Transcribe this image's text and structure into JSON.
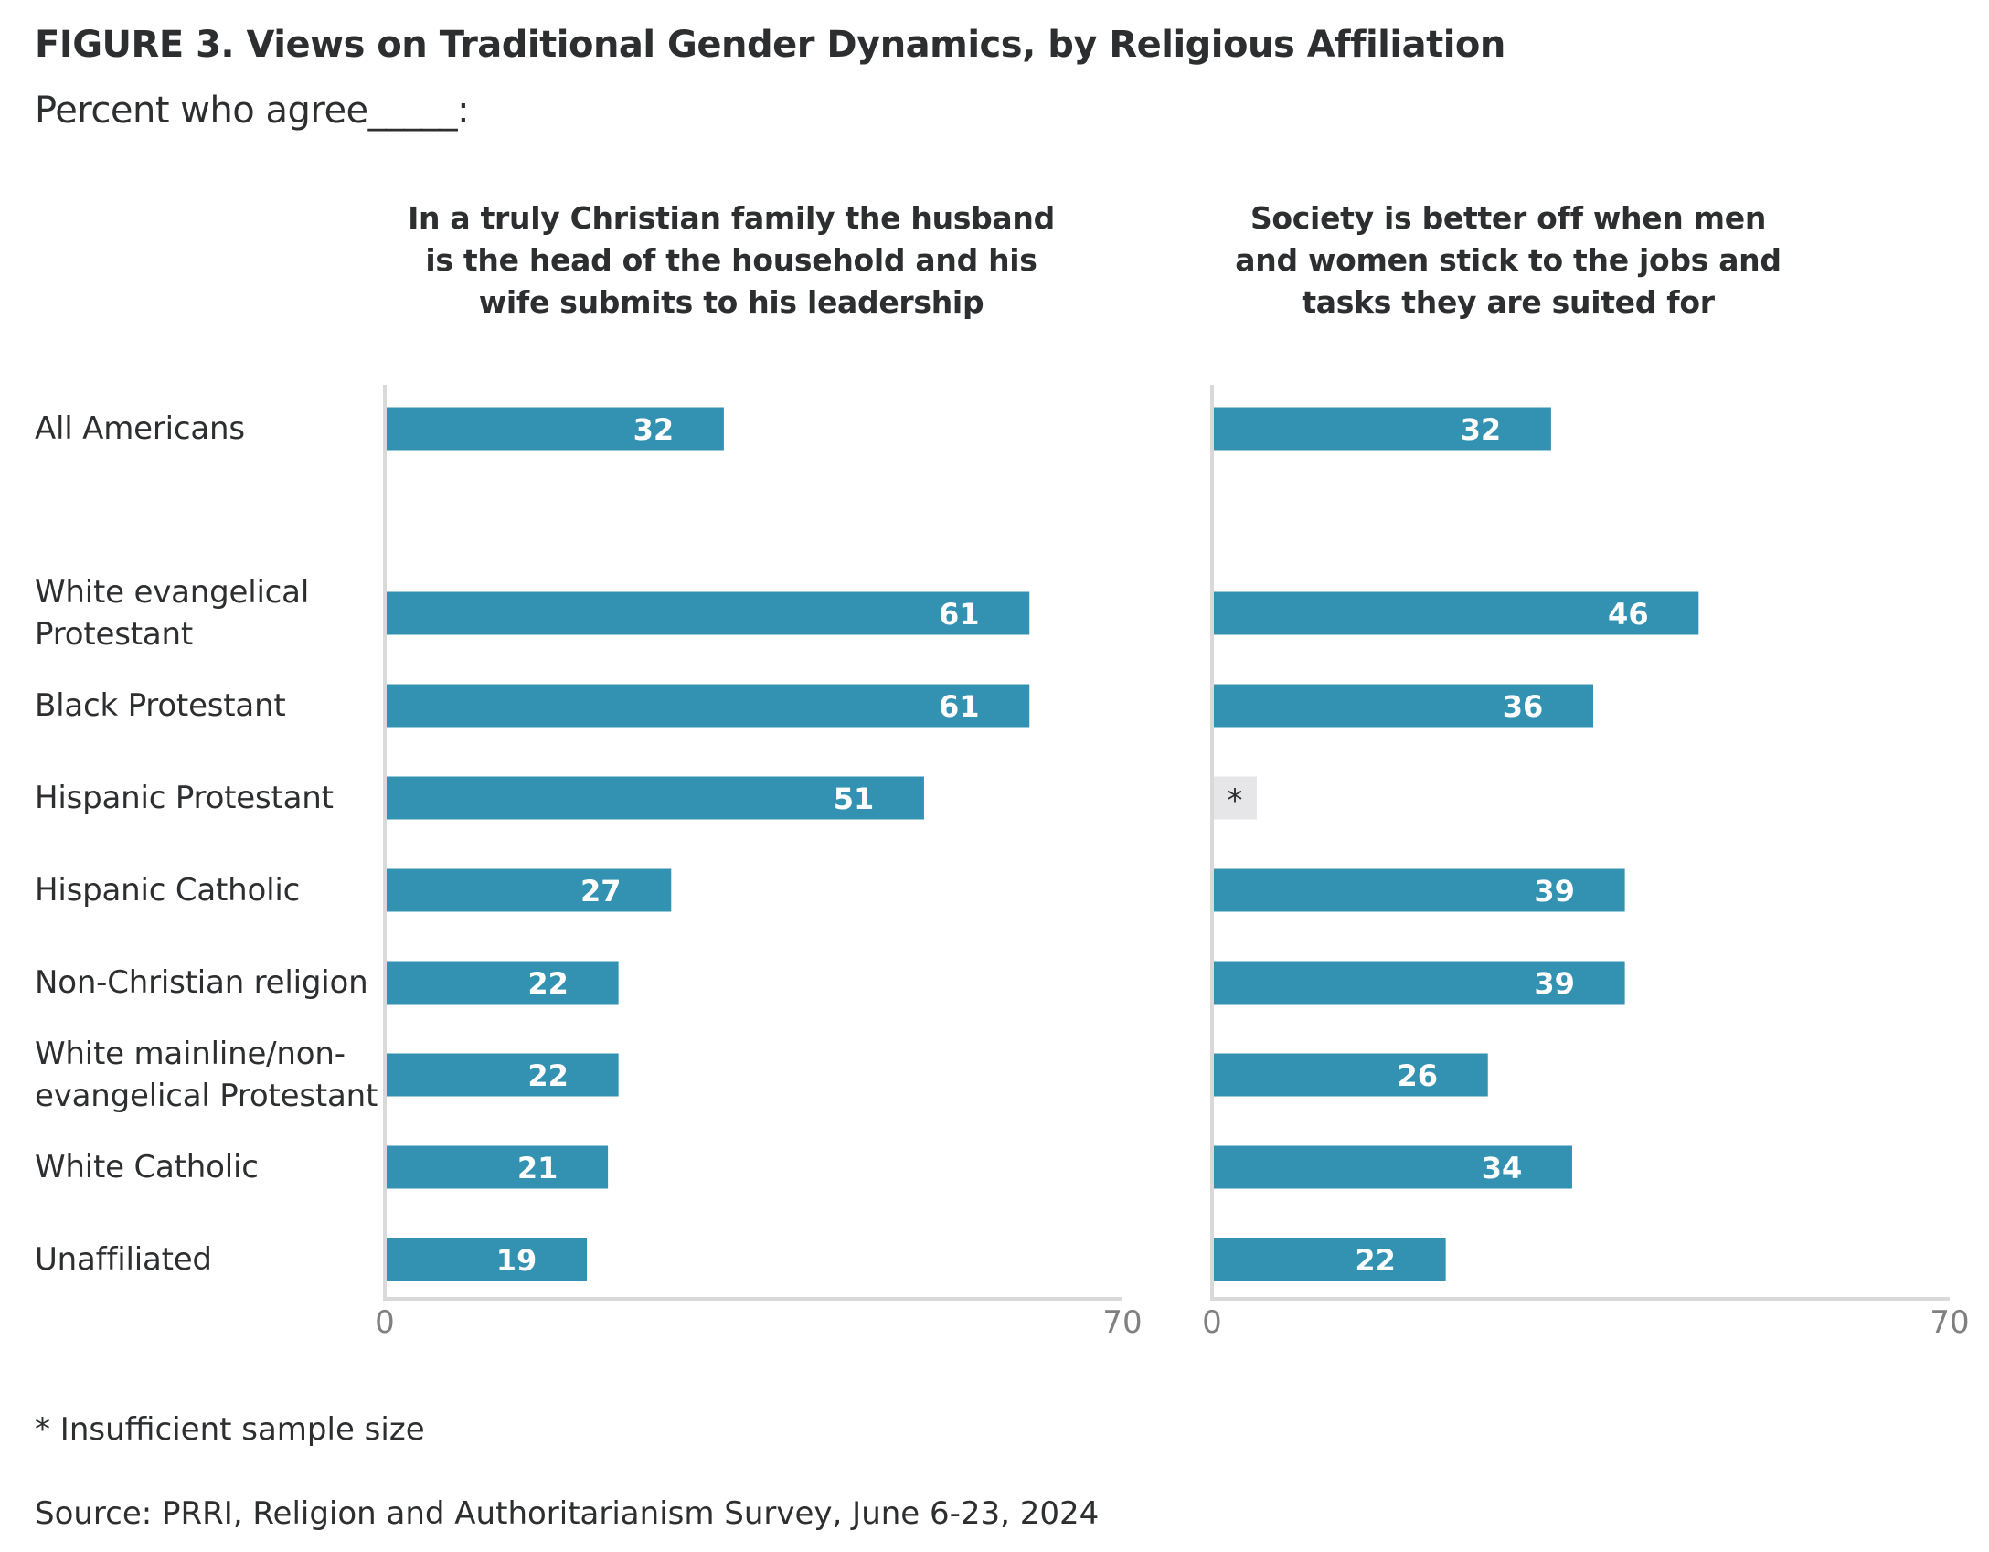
{
  "header": {
    "title": "FIGURE 3.  Views on Traditional Gender Dynamics, by Religious Affiliation",
    "subtitle": "Percent who agree_____:"
  },
  "footer": {
    "footnote": "* Insufficient sample size",
    "source": "Source: PRRI, Religion and Authoritarianism Survey, June 6-23, 2024"
  },
  "colors": {
    "bar": "#3392b1",
    "missing": "#e6e6e8",
    "axis": "#d9d9d9",
    "tick_text": "#808080",
    "bar_label": "#ffffff"
  },
  "chart_data": {
    "type": "bar",
    "orientation": "horizontal",
    "title": "FIGURE 3.  Views on Traditional Gender Dynamics, by Religious Affiliation",
    "subtitle": "Percent who agree_____:",
    "categories": [
      "All Americans",
      "White evangelical Protestant",
      "Black Protestant",
      "Hispanic Protestant",
      "Hispanic Catholic",
      "Non-Christian religion",
      "White mainline/non-evangelical Protestant",
      "White Catholic",
      "Unaffiliated"
    ],
    "category_lines": [
      [
        "All Americans"
      ],
      [
        "White evangelical",
        "Protestant"
      ],
      [
        "Black Protestant"
      ],
      [
        "Hispanic Protestant"
      ],
      [
        "Hispanic Catholic"
      ],
      [
        "Non-Christian religion"
      ],
      [
        "White mainline/non-",
        "evangelical Protestant"
      ],
      [
        "White Catholic"
      ],
      [
        "Unaffiliated"
      ]
    ],
    "series": [
      {
        "name": "In a truly Christian family the husband is the head of the household and his wife submits to his leadership",
        "title_lines": [
          "In a truly Christian family the husband",
          "is the head of the household and his",
          "wife submits to his leadership"
        ],
        "values": [
          32,
          61,
          61,
          51,
          27,
          22,
          22,
          21,
          19
        ]
      },
      {
        "name": "Society is better off when men and women stick to the jobs and tasks they are suited for",
        "title_lines": [
          "Society is better off when men",
          "and women stick to the jobs and",
          "tasks they are suited for"
        ],
        "values": [
          32,
          46,
          36,
          null,
          39,
          39,
          26,
          34,
          22
        ]
      }
    ],
    "missing_label": "*",
    "xlim": [
      0,
      70
    ],
    "xticks": [
      "0",
      "70"
    ],
    "xlabel": "",
    "ylabel": "",
    "grid": false,
    "legend": "none",
    "layout": "two panels side by side"
  }
}
